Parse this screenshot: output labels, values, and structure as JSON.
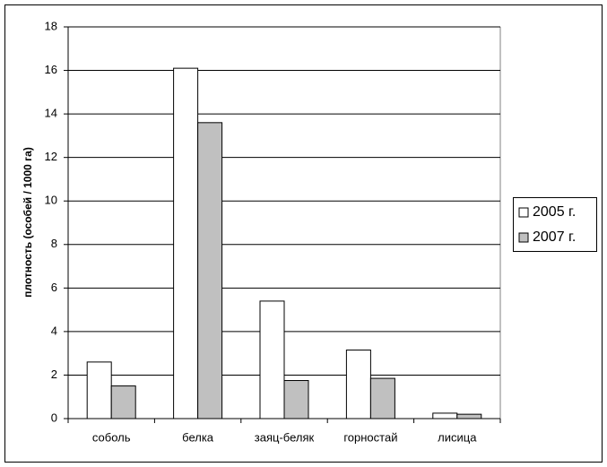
{
  "chart_data": {
    "type": "bar",
    "y_label": "плотность (особей / 1000 га)",
    "categories": [
      "соболь",
      "белка",
      "заяц-беляк",
      "горностай",
      "лисица"
    ],
    "series": [
      {
        "name": "2005 г.",
        "color": "#ffffff",
        "values": [
          2.6,
          16.1,
          5.4,
          3.15,
          0.25
        ]
      },
      {
        "name": "2007 г.",
        "color": "#c0c0c0",
        "values": [
          1.5,
          13.6,
          1.75,
          1.85,
          0.2
        ]
      }
    ],
    "ylim": [
      0,
      18
    ],
    "yticks": [
      0,
      2,
      4,
      6,
      8,
      10,
      12,
      14,
      16,
      18
    ],
    "grid": true,
    "legend": "right"
  }
}
